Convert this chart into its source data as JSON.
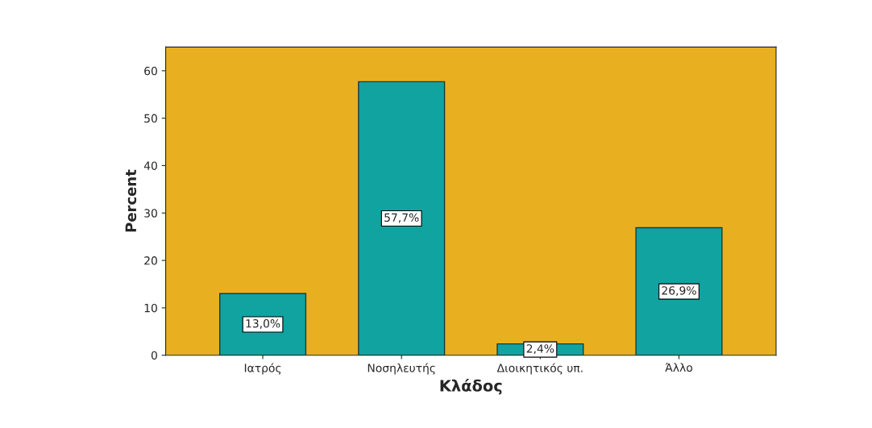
{
  "chart_data": {
    "type": "bar",
    "xlabel": "Κλάδος",
    "ylabel": "Percent",
    "categories": [
      "Ιατρός",
      "Νοσηλευτής",
      "Διοικητικός υπ.",
      "Άλλο"
    ],
    "values": [
      13.0,
      57.7,
      2.4,
      26.9
    ],
    "value_labels": [
      "13,0%",
      "57,7%",
      "2,4%",
      "26,9%"
    ],
    "color": "#11a3a0",
    "ylim": [
      0,
      65
    ],
    "yticks": [
      0,
      10,
      20,
      30,
      40,
      50,
      60
    ],
    "grid": false
  }
}
